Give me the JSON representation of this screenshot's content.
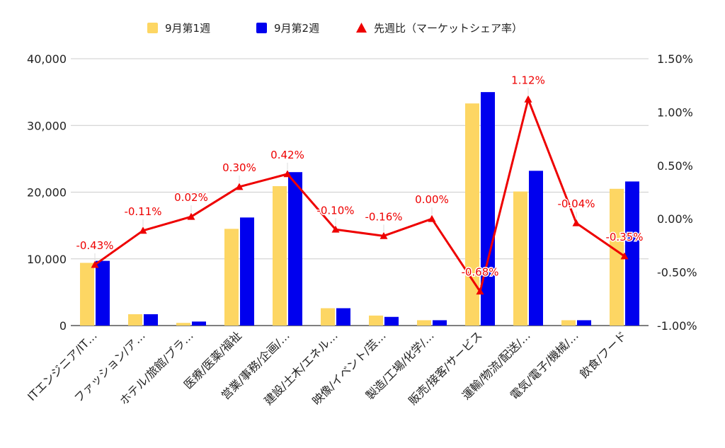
{
  "chart_data": {
    "type": "bar",
    "categories": [
      "ITエンジニア/IT…",
      "ファッション/ア…",
      "ホテル/旅館/ブラ…",
      "医療/医薬/福祉",
      "営業/事務/企画/…",
      "建設/土木/エネル…",
      "映像/イベント/芸…",
      "製造/工場/化学/…",
      "販売/接客/サービス",
      "運輸/物流/配送/…",
      "電気/電子/機械/…",
      "飲食/フード"
    ],
    "series": [
      {
        "name": "9月第1週",
        "type": "bar",
        "axis": "left",
        "color": "#fdd663",
        "values": [
          9400,
          1700,
          400,
          14500,
          20900,
          2600,
          1500,
          800,
          33300,
          20100,
          800,
          20500
        ]
      },
      {
        "name": "9月第2週",
        "type": "bar",
        "axis": "left",
        "color": "#0000ee",
        "values": [
          9700,
          1700,
          600,
          16200,
          23000,
          2600,
          1300,
          800,
          35000,
          23200,
          800,
          21600
        ]
      },
      {
        "name": "先週比（マーケットシェア率）",
        "type": "line",
        "axis": "right",
        "color": "#ee0000",
        "values": [
          -0.43,
          -0.11,
          0.02,
          0.3,
          0.42,
          -0.1,
          -0.16,
          0.0,
          -0.68,
          1.12,
          -0.04,
          -0.35
        ],
        "labels": [
          "-0.43%",
          "-0.11%",
          "0.02%",
          "0.30%",
          "0.42%",
          "-0.10%",
          "-0.16%",
          "0.00%",
          "-0.68%",
          "1.12%",
          "-0.04%",
          "-0.35%"
        ]
      }
    ],
    "y_left": {
      "ylim": [
        0,
        40000
      ],
      "ticks": [
        0,
        10000,
        20000,
        30000,
        40000
      ],
      "tick_labels": [
        "0",
        "10,000",
        "20,000",
        "30,000",
        "40,000"
      ]
    },
    "y_right": {
      "ylim": [
        -1.0,
        1.5
      ],
      "ticks": [
        -1.0,
        -0.5,
        0.0,
        0.5,
        1.0,
        1.5
      ],
      "tick_labels": [
        "-1.00%",
        "-0.50%",
        "0.00%",
        "0.50%",
        "1.00%",
        "1.50%"
      ]
    },
    "grid": true,
    "legend_position": "top-center"
  }
}
